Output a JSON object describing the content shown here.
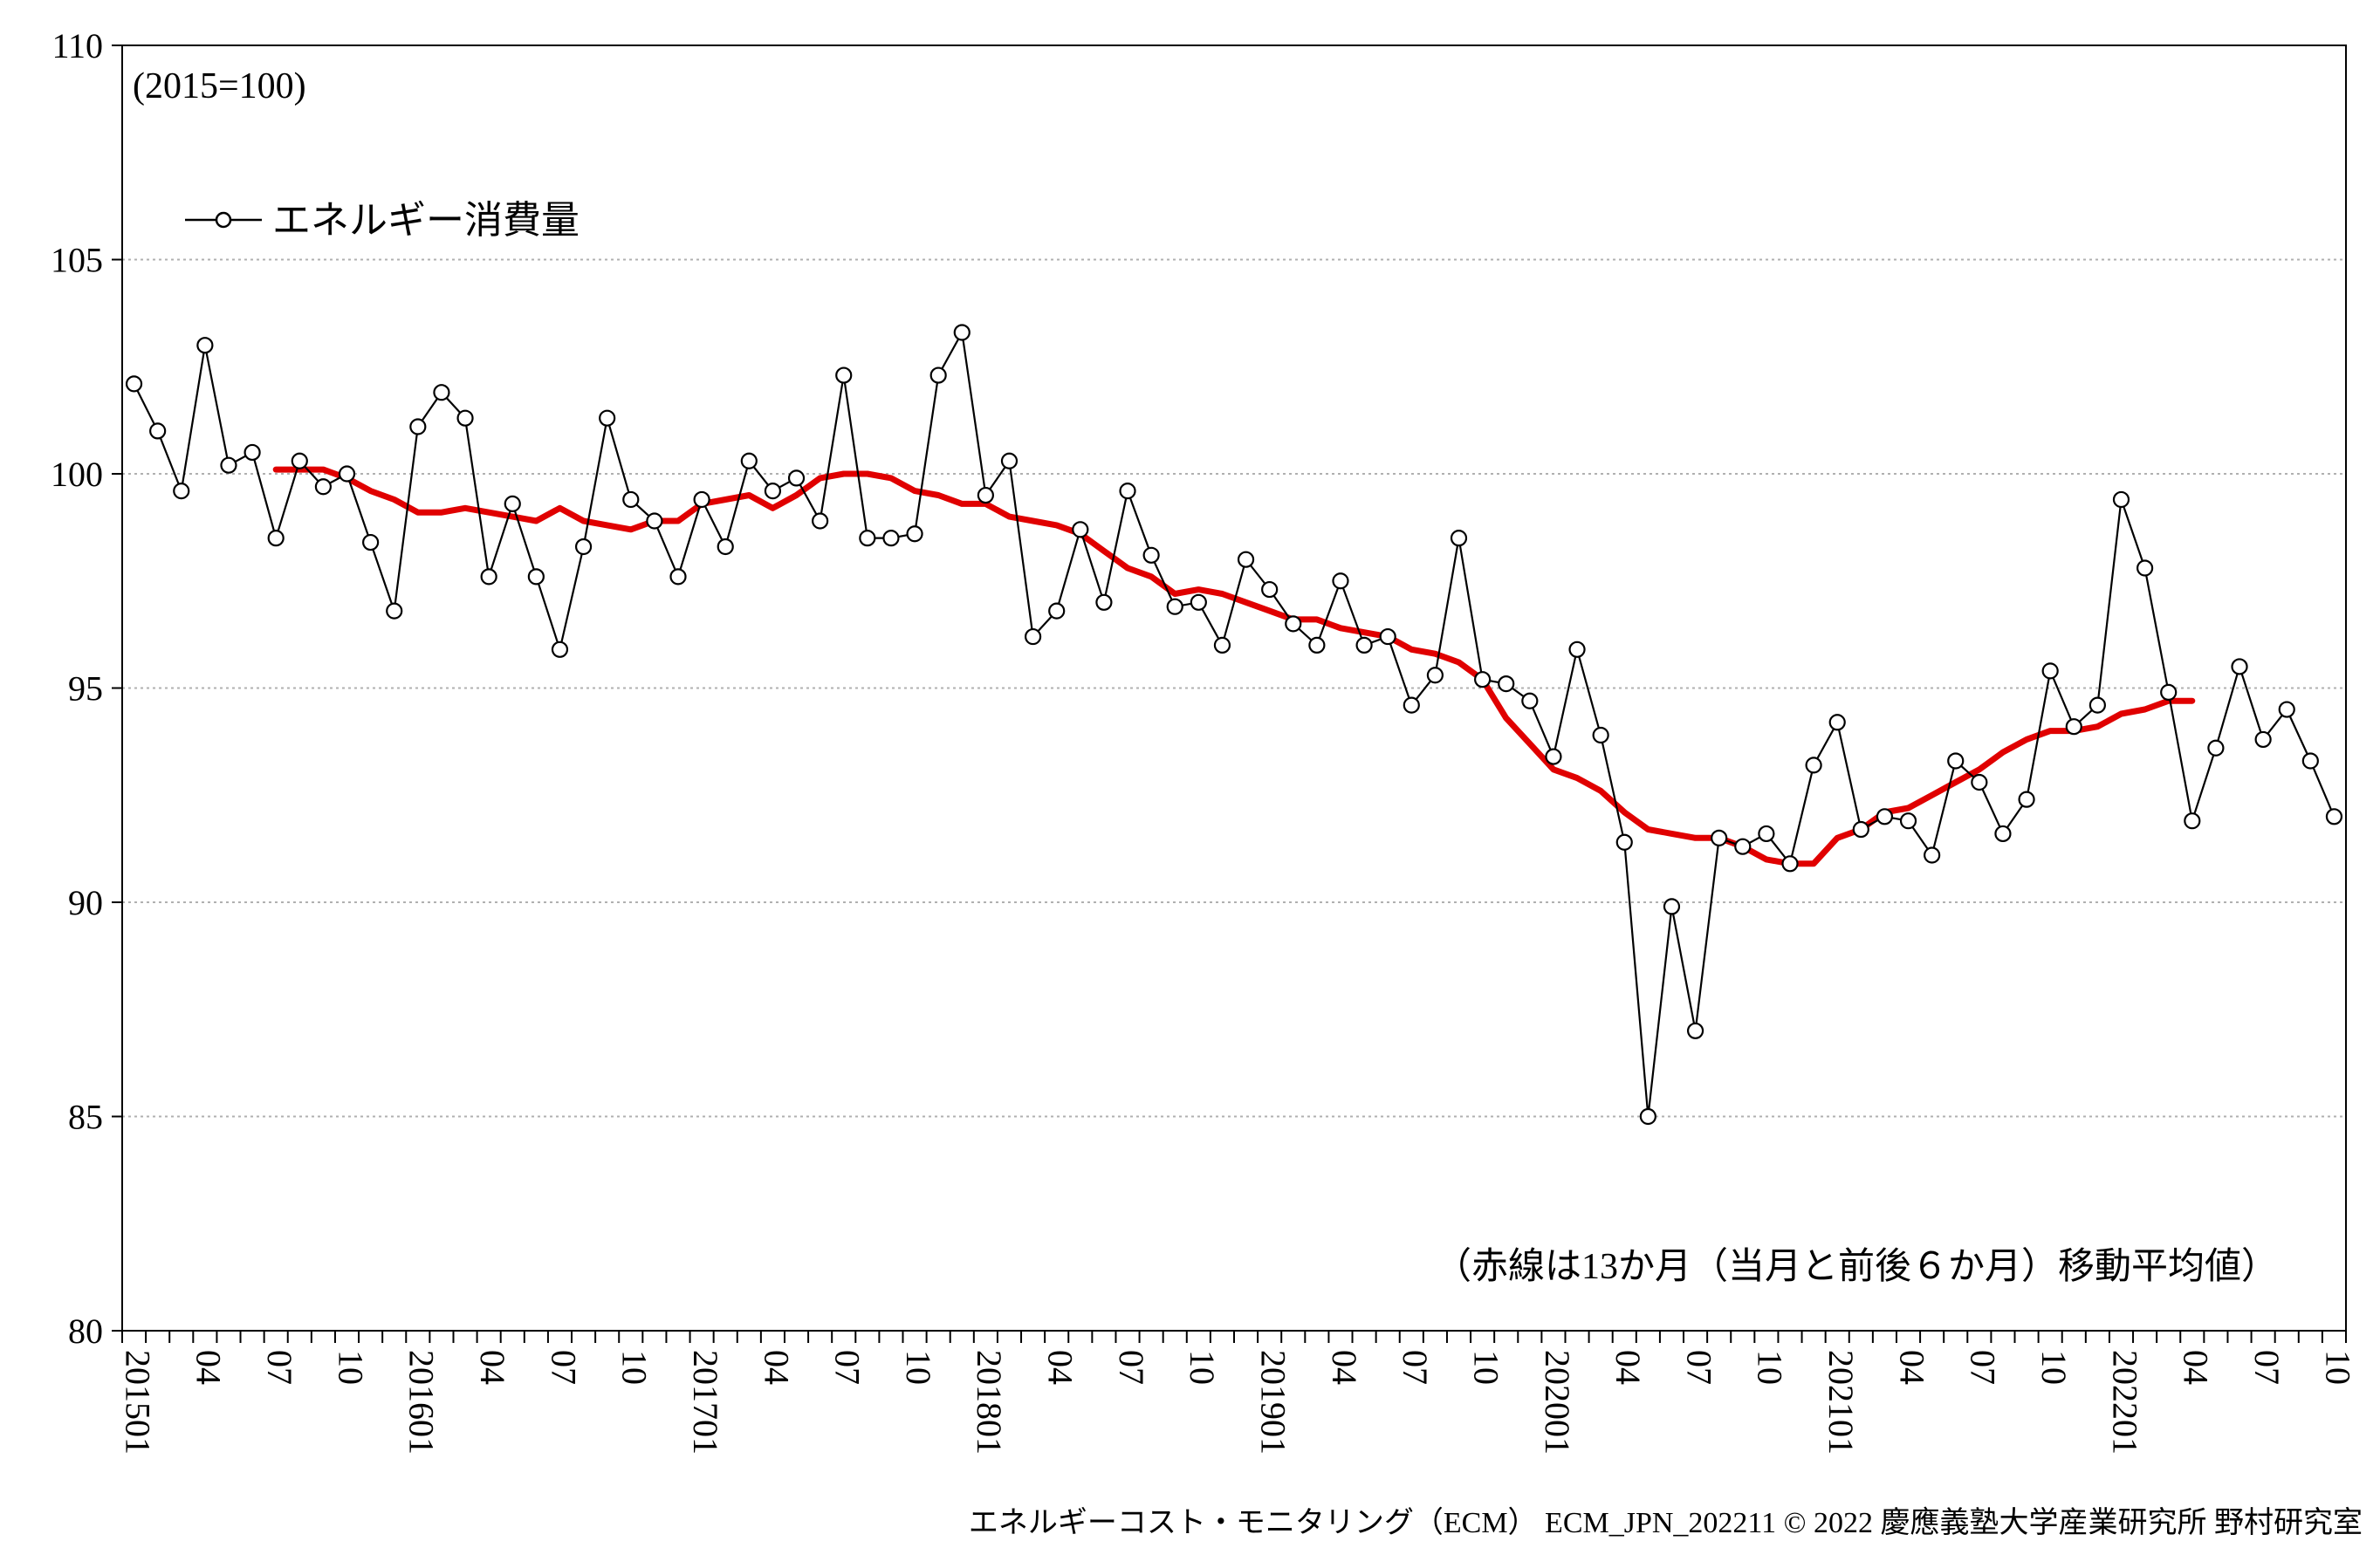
{
  "chart_data": {
    "type": "line",
    "base_note": "(2015=100)",
    "legend_label": "エネルギー消費量",
    "annotation": "（赤線は13か月（当月と前後６か月）移動平均値）",
    "ylim": [
      80,
      110
    ],
    "yticks": [
      80,
      85,
      90,
      95,
      100,
      105,
      110
    ],
    "grid": "horizontal dotted",
    "legend_position": "top-left",
    "x": [
      "201501",
      "201502",
      "201503",
      "201504",
      "201505",
      "201506",
      "201507",
      "201508",
      "201509",
      "201510",
      "201511",
      "201512",
      "201601",
      "201602",
      "201603",
      "201604",
      "201605",
      "201606",
      "201607",
      "201608",
      "201609",
      "201610",
      "201611",
      "201612",
      "201701",
      "201702",
      "201703",
      "201704",
      "201705",
      "201706",
      "201707",
      "201708",
      "201709",
      "201710",
      "201711",
      "201712",
      "201801",
      "201802",
      "201803",
      "201804",
      "201805",
      "201806",
      "201807",
      "201808",
      "201809",
      "201810",
      "201811",
      "201812",
      "201901",
      "201902",
      "201903",
      "201904",
      "201905",
      "201906",
      "201907",
      "201908",
      "201909",
      "201910",
      "201911",
      "201912",
      "202001",
      "202002",
      "202003",
      "202004",
      "202005",
      "202006",
      "202007",
      "202008",
      "202009",
      "202010",
      "202011",
      "202012",
      "202101",
      "202102",
      "202103",
      "202104",
      "202105",
      "202106",
      "202107",
      "202108",
      "202109",
      "202110",
      "202111",
      "202112",
      "202201",
      "202202",
      "202203",
      "202204",
      "202205",
      "202206",
      "202207",
      "202208",
      "202209",
      "202210"
    ],
    "xtick_labels": [
      "201501",
      "04",
      "07",
      "10",
      "201601",
      "04",
      "07",
      "10",
      "201701",
      "04",
      "07",
      "10",
      "201801",
      "04",
      "07",
      "10",
      "201901",
      "04",
      "07",
      "10",
      "202001",
      "04",
      "07",
      "10",
      "202101",
      "04",
      "07",
      "10",
      "202201",
      "04",
      "07",
      "10"
    ],
    "series": [
      {
        "name": "エネルギー消費量",
        "color": "#000000",
        "marker": "open-circle",
        "values": [
          102.1,
          101.0,
          99.6,
          103.0,
          100.2,
          100.5,
          98.5,
          100.3,
          99.7,
          100.0,
          98.4,
          96.8,
          101.1,
          101.9,
          101.3,
          97.6,
          99.3,
          97.6,
          95.9,
          98.3,
          101.3,
          99.4,
          98.9,
          97.6,
          99.4,
          98.3,
          100.3,
          99.6,
          99.9,
          98.9,
          102.3,
          98.5,
          98.5,
          98.6,
          102.3,
          103.3,
          99.5,
          100.3,
          96.2,
          96.8,
          98.7,
          97.0,
          99.6,
          98.1,
          96.9,
          97.0,
          96.0,
          98.0,
          97.3,
          96.5,
          96.0,
          97.5,
          96.0,
          96.2,
          94.6,
          95.3,
          98.5,
          95.2,
          95.1,
          94.7,
          93.4,
          95.9,
          93.9,
          91.4,
          85.0,
          89.9,
          87.0,
          91.5,
          91.3,
          91.6,
          90.9,
          93.2,
          94.2,
          91.7,
          92.0,
          91.9,
          91.1,
          93.3,
          92.8,
          91.6,
          92.4,
          95.4,
          94.1,
          94.6,
          99.4,
          97.8,
          94.9,
          91.9,
          93.6,
          95.5,
          93.8,
          94.5,
          93.3,
          92.0
        ]
      },
      {
        "name": "",
        "color": "#e00000",
        "line_width": "thick",
        "values": [
          null,
          null,
          null,
          null,
          null,
          null,
          100.1,
          100.1,
          100.1,
          99.9,
          99.6,
          99.4,
          99.1,
          99.1,
          99.2,
          99.1,
          99.0,
          98.9,
          99.2,
          98.9,
          98.8,
          98.7,
          98.9,
          98.9,
          99.3,
          99.4,
          99.5,
          99.2,
          99.5,
          99.9,
          100.0,
          100.0,
          99.9,
          99.6,
          99.5,
          99.3,
          99.3,
          99.0,
          98.9,
          98.8,
          98.6,
          98.2,
          97.8,
          97.6,
          97.2,
          97.3,
          97.2,
          97.0,
          96.8,
          96.6,
          96.6,
          96.4,
          96.3,
          96.2,
          95.9,
          95.8,
          95.6,
          95.2,
          94.3,
          93.7,
          93.1,
          92.9,
          92.6,
          92.1,
          91.7,
          91.6,
          91.5,
          91.5,
          91.3,
          91.0,
          90.9,
          90.9,
          91.5,
          91.7,
          92.1,
          92.2,
          92.5,
          92.8,
          93.1,
          93.5,
          93.8,
          94.0,
          94.0,
          94.1,
          94.4,
          94.5,
          94.7,
          94.7,
          null,
          null,
          null,
          null,
          null,
          null
        ]
      }
    ]
  },
  "footer": {
    "credit": "エネルギーコスト・モニタリング（ECM） ECM_JPN_202211 © 2022 慶應義塾大学産業研究所 野村研究室"
  }
}
